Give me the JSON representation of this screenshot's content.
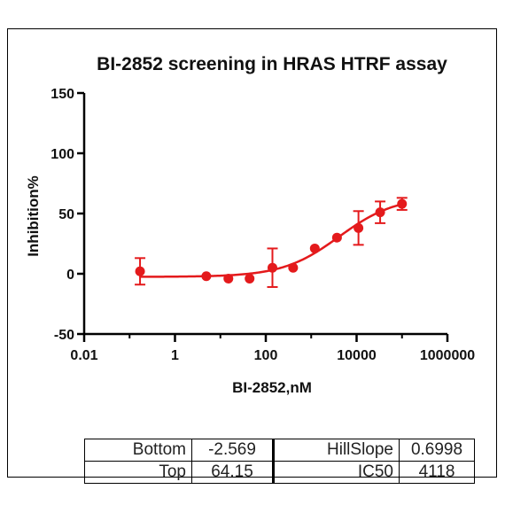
{
  "chart_data": {
    "type": "scatter",
    "title": "BI-2852 screening in HRAS HTRF assay",
    "xlabel": "BI-2852,nM",
    "ylabel": "Inhibition%",
    "x_scale": "log",
    "xlim": [
      0.01,
      1000000
    ],
    "ylim": [
      -50,
      150
    ],
    "x_ticks": [
      0.01,
      1,
      100,
      10000,
      1000000
    ],
    "x_tick_labels": [
      "0.01",
      "1",
      "100",
      "10000",
      "1000000"
    ],
    "y_ticks": [
      -50,
      0,
      50,
      100,
      150
    ],
    "y_tick_labels": [
      "-50",
      "0",
      "50",
      "100",
      "150"
    ],
    "color": "#e41a1c",
    "series": [
      {
        "x": [
          0.17,
          4.9,
          15,
          44,
          140,
          400,
          1200,
          3700,
          11000,
          33000,
          100000
        ],
        "y": [
          2,
          -2,
          -4,
          -4,
          5,
          5,
          21,
          30,
          38,
          51,
          58
        ],
        "err": [
          11,
          0,
          0,
          0,
          16,
          0,
          0,
          0,
          14,
          9,
          5
        ]
      }
    ],
    "fit": {
      "model": "four-parameter logistic",
      "bottom": -2.569,
      "top": 64.15,
      "hillslope": 0.6998,
      "ic50": 4118
    }
  },
  "fit_table": {
    "rows": [
      [
        "Bottom",
        "-2.569",
        "HillSlope",
        "0.6998"
      ],
      [
        "Top",
        "64.15",
        "IC50",
        "4118"
      ]
    ]
  }
}
